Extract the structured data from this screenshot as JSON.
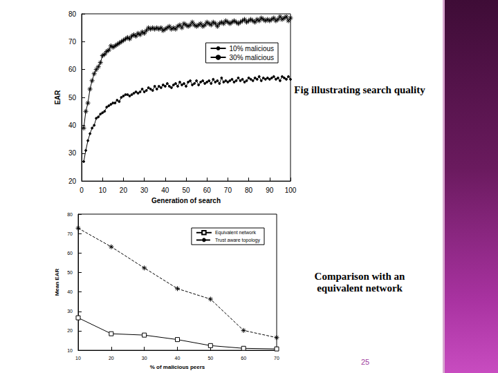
{
  "chart_data": [
    {
      "type": "line",
      "annotation": "Fig illustrating search quality",
      "x_label": "Generation of search",
      "y_label": "EAR",
      "xlim": [
        0,
        100
      ],
      "xticks": [
        0,
        10,
        20,
        30,
        40,
        50,
        60,
        70,
        80,
        90,
        100
      ],
      "ylim": [
        20,
        80
      ],
      "yticks": [
        20,
        30,
        40,
        50,
        60,
        70,
        80
      ],
      "grid": false,
      "legend": "upper right",
      "x": [
        1,
        2,
        3,
        4,
        5,
        6,
        7,
        8,
        9,
        10,
        11,
        12,
        13,
        14,
        15,
        16,
        17,
        18,
        19,
        20,
        21,
        22,
        23,
        24,
        25,
        26,
        27,
        28,
        29,
        30,
        31,
        32,
        33,
        34,
        35,
        36,
        37,
        38,
        39,
        40,
        41,
        42,
        43,
        44,
        45,
        46,
        47,
        48,
        49,
        50,
        51,
        52,
        53,
        54,
        55,
        56,
        57,
        58,
        59,
        60,
        61,
        62,
        63,
        64,
        65,
        66,
        67,
        68,
        69,
        70,
        71,
        72,
        73,
        74,
        75,
        76,
        77,
        78,
        79,
        80,
        81,
        82,
        83,
        84,
        85,
        86,
        87,
        88,
        89,
        90,
        91,
        92,
        93,
        94,
        95,
        96,
        97,
        98,
        99,
        100
      ],
      "series": [
        {
          "name": "10% malicious",
          "color": "#000000",
          "marker": "asterisk",
          "line_style": "solid",
          "values": [
            39,
            45,
            48,
            53,
            56,
            58.5,
            60,
            61,
            62.5,
            65,
            65.5,
            66.5,
            67,
            68.5,
            68,
            68.5,
            69,
            69.5,
            70,
            70.5,
            71,
            71.5,
            71,
            72,
            72.5,
            72,
            73,
            72.5,
            73.5,
            73,
            74,
            75,
            74.5,
            75,
            74.5,
            75,
            74.5,
            75,
            74,
            74.5,
            75,
            75.5,
            74.5,
            75,
            74.5,
            75.5,
            76,
            75,
            76.5,
            76,
            75.5,
            76,
            77,
            76,
            75.5,
            76,
            76.5,
            75.5,
            76,
            77,
            76.5,
            76,
            77,
            76.5,
            75.5,
            76.5,
            77,
            76.5,
            77.5,
            77,
            76.5,
            77,
            77.5,
            77,
            76.5,
            77,
            77.5,
            78,
            77,
            77.5,
            78,
            77.5,
            77,
            78,
            77.5,
            78.5,
            78,
            77.5,
            78,
            77.5,
            78,
            78.5,
            77.5,
            78,
            79,
            78,
            78.5,
            79,
            77.5,
            78.5
          ]
        },
        {
          "name": "30% malicious",
          "color": "#000000",
          "marker": "dot",
          "line_style": "solid",
          "values": [
            27,
            31,
            34.5,
            37,
            39,
            40,
            42.5,
            43,
            44,
            44.5,
            45,
            46.5,
            47,
            47.5,
            48,
            48,
            49,
            48.5,
            50,
            50.5,
            51,
            51,
            50.5,
            51,
            51.5,
            52,
            51.5,
            52,
            53,
            52,
            52.5,
            53.5,
            53,
            52.5,
            54,
            53,
            54,
            53.5,
            54.5,
            54,
            55,
            54,
            53.5,
            54.5,
            55,
            54,
            55.5,
            54.5,
            55,
            54,
            55.5,
            56,
            54.5,
            55,
            56,
            54.5,
            55.5,
            56,
            55,
            55.5,
            56,
            55,
            56.5,
            55.5,
            56,
            55,
            57,
            55.5,
            56,
            55.5,
            56,
            56.5,
            55.5,
            56,
            57,
            56,
            56.5,
            55.5,
            56,
            57,
            56.5,
            56,
            57,
            56.5,
            57.5,
            56,
            57,
            56.5,
            57,
            56.5,
            57,
            57.5,
            56.5,
            57,
            56,
            57.5,
            57,
            56.5,
            57.5,
            56.5
          ]
        }
      ]
    },
    {
      "type": "line",
      "annotation": "Comparison with an equivalent network",
      "x_label": "% of malicious peers",
      "y_label": "Mean EAR",
      "xlim": [
        10,
        70
      ],
      "xticks": [
        10,
        20,
        30,
        40,
        50,
        60,
        70
      ],
      "ylim": [
        10,
        80
      ],
      "yticks": [
        10,
        20,
        30,
        40,
        50,
        60,
        70,
        80
      ],
      "grid": false,
      "legend": "upper right",
      "x": [
        10,
        20,
        30,
        40,
        50,
        60,
        70
      ],
      "series": [
        {
          "name": "Equivalent network",
          "color": "#000000",
          "marker": "square",
          "line_style": "solid",
          "values": [
            26.7,
            18.5,
            17.8,
            15.5,
            12.4,
            11,
            10.7
          ]
        },
        {
          "name": "Trust aware topology",
          "color": "#000000",
          "marker": "asterisk",
          "line_style": "dashed",
          "values": [
            72.8,
            63.2,
            52.3,
            41.7,
            36.3,
            20.2,
            16.5
          ]
        }
      ]
    }
  ],
  "page_number": 25
}
